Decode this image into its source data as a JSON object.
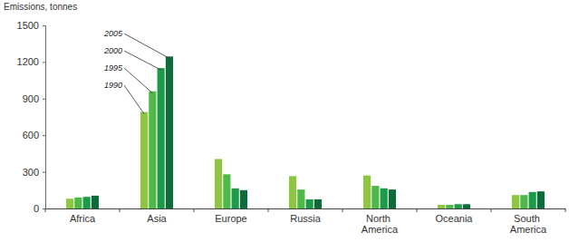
{
  "chart_data": {
    "type": "bar",
    "y_label": "Emissions, tonnes",
    "categories": [
      "Africa",
      "Asia",
      "Europe",
      "Russia",
      "North America",
      "Oceania",
      "South America"
    ],
    "series": [
      {
        "name": "1990",
        "color": "#8dc63f",
        "values": [
          80,
          790,
          405,
          265,
          270,
          30,
          110
        ]
      },
      {
        "name": "1995",
        "color": "#4fb848",
        "values": [
          90,
          960,
          280,
          155,
          185,
          30,
          110
        ]
      },
      {
        "name": "2000",
        "color": "#1c9a4a",
        "values": [
          95,
          1150,
          165,
          75,
          165,
          35,
          135
        ]
      },
      {
        "name": "2005",
        "color": "#0e6b3a",
        "values": [
          105,
          1245,
          150,
          75,
          155,
          35,
          140
        ]
      }
    ],
    "ylim": [
      0,
      1500
    ],
    "yticks": [
      0,
      300,
      600,
      900,
      1200,
      1500
    ],
    "grid": false
  }
}
